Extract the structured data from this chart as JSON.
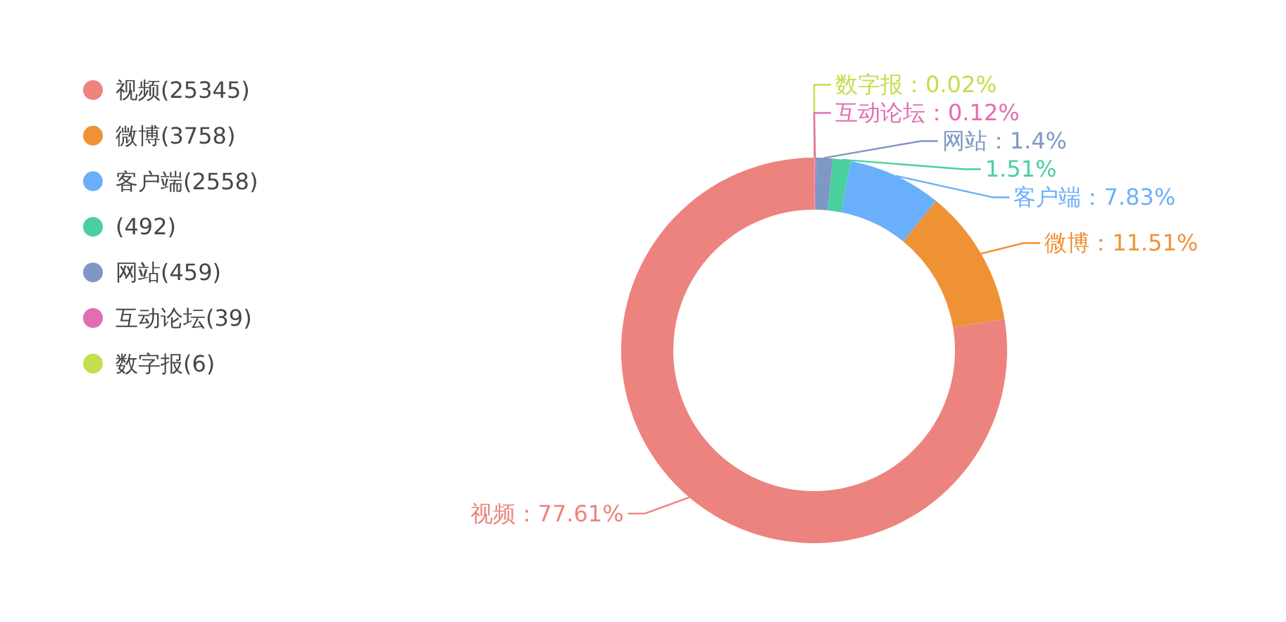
{
  "chart_data": {
    "type": "donut",
    "categories": [
      "视频(25345)",
      "微博(3758)",
      "客户端(2558)",
      "(492)",
      "网站(459)",
      "互动论坛(39)",
      "数字报(6)"
    ],
    "values": [
      77.61,
      11.51,
      7.83,
      1.51,
      1.4,
      0.12,
      0.02
    ],
    "colors": [
      "#ed837e",
      "#ef9235",
      "#6aaffb",
      "#4acf9e",
      "#7f97c4",
      "#e26db3",
      "#c3de4e"
    ],
    "value_labels": [
      "视频：77.61%",
      "微博：11.51%",
      "客户端：7.83%",
      "1.51%",
      "网站：1.4%",
      "互动论坛：0.12%",
      "数字报：0.02%"
    ],
    "legend": "top left"
  }
}
